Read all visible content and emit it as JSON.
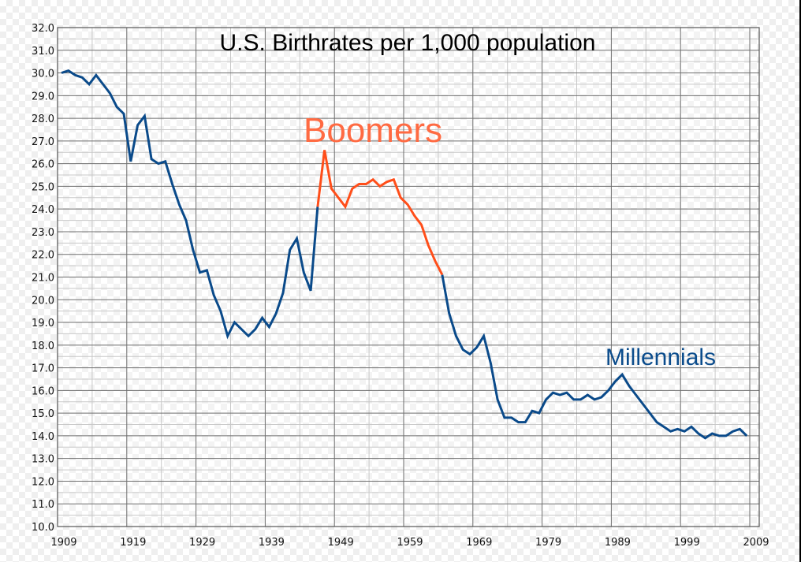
{
  "chart_data": {
    "type": "line",
    "title": "U.S. Birthrates per 1,000 population",
    "xlabel": "",
    "ylabel": "",
    "xlim": [
      1909,
      2009
    ],
    "ylim": [
      10.0,
      32.0
    ],
    "grid": true,
    "x_ticks": [
      "1909",
      "1919",
      "1929",
      "1939",
      "1949",
      "1959",
      "1969",
      "1979",
      "1989",
      "1999",
      "2009"
    ],
    "y_ticks": [
      "10.0",
      "11.0",
      "12.0",
      "13.0",
      "14.0",
      "15.0",
      "16.0",
      "17.0",
      "18.0",
      "19.0",
      "20.0",
      "21.0",
      "22.0",
      "23.0",
      "24.0",
      "25.0",
      "26.0",
      "27.0",
      "28.0",
      "29.0",
      "30.0",
      "31.0",
      "32.0"
    ],
    "annotations": [
      {
        "text": "Boomers",
        "color": "#FF6A42"
      },
      {
        "text": "Millennials",
        "color": "#0B4C8C"
      }
    ],
    "series": [
      {
        "name": "Birthrate",
        "color": "#0A4A8A",
        "x": [
          1909,
          1910,
          1911,
          1912,
          1913,
          1914,
          1915,
          1916,
          1917,
          1918,
          1919,
          1920,
          1921,
          1922,
          1923,
          1924,
          1925,
          1926,
          1927,
          1928,
          1929,
          1930,
          1931,
          1932,
          1933,
          1934,
          1935,
          1936,
          1937,
          1938,
          1939,
          1940,
          1941,
          1942,
          1943,
          1944,
          1945,
          1946,
          1947,
          1948,
          1949,
          1950,
          1951,
          1952,
          1953,
          1954,
          1955,
          1956,
          1957,
          1958,
          1959,
          1960,
          1961,
          1962,
          1963,
          1964,
          1965,
          1966,
          1967,
          1968,
          1969,
          1970,
          1971,
          1972,
          1973,
          1974,
          1975,
          1976,
          1977,
          1978,
          1979,
          1980,
          1981,
          1982,
          1983,
          1984,
          1985,
          1986,
          1987,
          1988,
          1989,
          1990,
          1991,
          1992,
          1993,
          1994,
          1995,
          1996,
          1997,
          1998,
          1999,
          2000,
          2001,
          2002,
          2003,
          2004,
          2005,
          2006,
          2007,
          2008
        ],
        "values": [
          30.0,
          30.1,
          29.9,
          29.8,
          29.5,
          29.9,
          29.5,
          29.1,
          28.5,
          28.2,
          26.1,
          27.7,
          28.1,
          26.2,
          26.0,
          26.1,
          25.1,
          24.2,
          23.5,
          22.2,
          21.2,
          21.3,
          20.2,
          19.5,
          18.4,
          19.0,
          18.7,
          18.4,
          18.7,
          19.2,
          18.8,
          19.4,
          20.3,
          22.2,
          22.7,
          21.2,
          20.4,
          24.1,
          26.6,
          24.9,
          24.5,
          24.1,
          24.9,
          25.1,
          25.1,
          25.3,
          25.0,
          25.2,
          25.3,
          24.5,
          24.2,
          23.7,
          23.3,
          22.4,
          21.7,
          21.1,
          19.4,
          18.4,
          17.8,
          17.6,
          17.9,
          18.4,
          17.2,
          15.6,
          14.8,
          14.8,
          14.6,
          14.6,
          15.1,
          15.0,
          15.6,
          15.9,
          15.8,
          15.9,
          15.6,
          15.6,
          15.8,
          15.6,
          15.7,
          16.0,
          16.4,
          16.7,
          16.2,
          15.8,
          15.4,
          15.0,
          14.6,
          14.4,
          14.2,
          14.3,
          14.2,
          14.4,
          14.1,
          13.9,
          14.1,
          14.0,
          14.0,
          14.2,
          14.3,
          14.0
        ]
      },
      {
        "name": "Boomers",
        "color": "#FF4E1A",
        "x_range": [
          1946,
          1964
        ]
      }
    ]
  },
  "title": "U.S. Birthrates per 1,000 population",
  "labels": {
    "boomers": "Boomers",
    "millennials": "Millennials"
  }
}
